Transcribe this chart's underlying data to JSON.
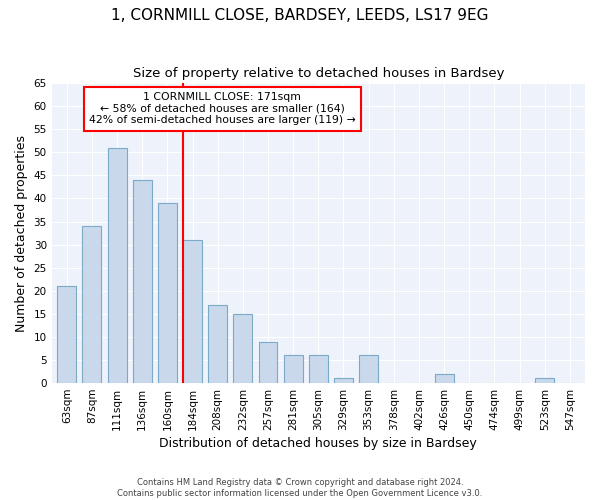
{
  "title_line1": "1, CORNMILL CLOSE, BARDSEY, LEEDS, LS17 9EG",
  "title_line2": "Size of property relative to detached houses in Bardsey",
  "xlabel": "Distribution of detached houses by size in Bardsey",
  "ylabel": "Number of detached properties",
  "footer_line1": "Contains HM Land Registry data © Crown copyright and database right 2024.",
  "footer_line2": "Contains public sector information licensed under the Open Government Licence v3.0.",
  "annotation_line1": "1 CORNMILL CLOSE: 171sqm",
  "annotation_line2": "← 58% of detached houses are smaller (164)",
  "annotation_line3": "42% of semi-detached houses are larger (119) →",
  "bar_labels": [
    "63sqm",
    "87sqm",
    "111sqm",
    "136sqm",
    "160sqm",
    "184sqm",
    "208sqm",
    "232sqm",
    "257sqm",
    "281sqm",
    "305sqm",
    "329sqm",
    "353sqm",
    "378sqm",
    "402sqm",
    "426sqm",
    "450sqm",
    "474sqm",
    "499sqm",
    "523sqm",
    "547sqm"
  ],
  "bar_values": [
    21,
    34,
    51,
    44,
    39,
    31,
    17,
    15,
    9,
    6,
    6,
    1,
    6,
    0,
    0,
    2,
    0,
    0,
    0,
    1,
    0
  ],
  "bar_color": "#c9d9eb",
  "bar_edge_color": "#7aaac8",
  "vline_x": 5.0,
  "vline_color": "red",
  "ylim": [
    0,
    65
  ],
  "yticks": [
    0,
    5,
    10,
    15,
    20,
    25,
    30,
    35,
    40,
    45,
    50,
    55,
    60,
    65
  ],
  "background_color": "#eef2fa",
  "grid_color": "#ffffff",
  "title_fontsize": 11,
  "subtitle_fontsize": 9.5,
  "axis_label_fontsize": 9,
  "tick_fontsize": 7.5,
  "annotation_box_color": "white",
  "annotation_box_edge": "red",
  "bar_width": 0.75
}
